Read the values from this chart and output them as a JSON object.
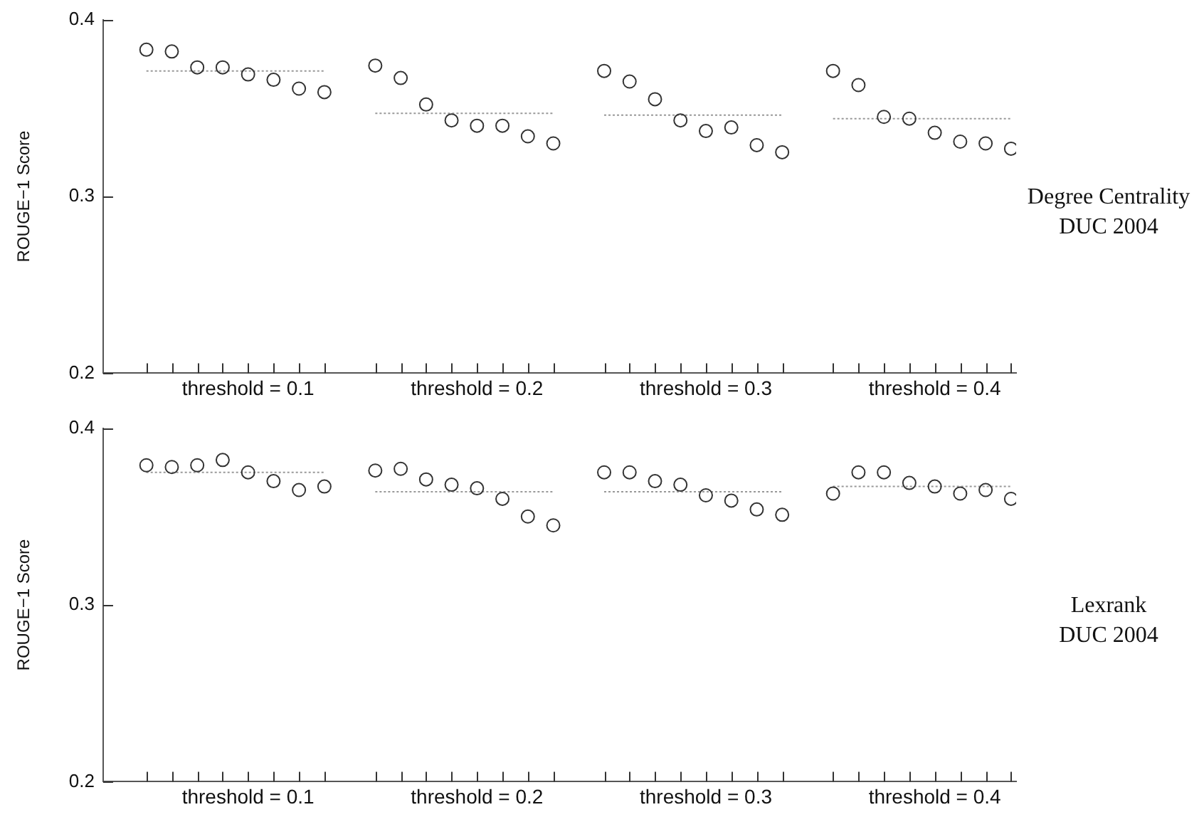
{
  "chart_data": [
    {
      "type": "scatter",
      "ylabel": "ROUGE−1 Score",
      "annotations": [
        "Degree Centrality",
        "DUC 2004"
      ],
      "categories": [
        null,
        null,
        null,
        null,
        "threshold = 0.1",
        null,
        null,
        null,
        null,
        null,
        null,
        null,
        null,
        "threshold = 0.2",
        null,
        null,
        null,
        null,
        null,
        null,
        null,
        null,
        "threshold = 0.3",
        null,
        null,
        null,
        null,
        null,
        null,
        null,
        null,
        "threshold = 0.4",
        null,
        null,
        null
      ],
      "ylim": [
        0.2,
        0.4
      ],
      "yticks": [
        0.2,
        0.3,
        0.4
      ],
      "grid": false,
      "marker": "circle",
      "series": [
        {
          "type": "scatter",
          "color": "#333333",
          "values": [
            0.383,
            0.382,
            0.373,
            0.373,
            0.369,
            0.366,
            0.361,
            0.359,
            null,
            0.374,
            0.367,
            0.352,
            0.343,
            0.34,
            0.34,
            0.334,
            0.33,
            null,
            0.371,
            0.365,
            0.355,
            0.343,
            0.337,
            0.339,
            0.329,
            0.325,
            null,
            0.371,
            0.363,
            0.345,
            0.344,
            0.336,
            0.331,
            0.33,
            0.327
          ]
        },
        {
          "type": "line",
          "color": "#999999",
          "marker": "none",
          "line_style": "dotted",
          "values": [
            0.371,
            0.371,
            0.371,
            0.371,
            0.371,
            0.371,
            0.371,
            0.371,
            null,
            0.347,
            0.347,
            0.347,
            0.347,
            0.347,
            0.347,
            0.347,
            0.347,
            null,
            0.346,
            0.346,
            0.346,
            0.346,
            0.346,
            0.346,
            0.346,
            0.346,
            null,
            0.344,
            0.344,
            0.344,
            0.344,
            0.344,
            0.344,
            0.344,
            0.344
          ]
        }
      ]
    },
    {
      "type": "scatter",
      "ylabel": "ROUGE−1 Score",
      "annotations": [
        "Lexrank",
        "DUC 2004"
      ],
      "categories": [
        null,
        null,
        null,
        null,
        "threshold = 0.1",
        null,
        null,
        null,
        null,
        null,
        null,
        null,
        null,
        "threshold = 0.2",
        null,
        null,
        null,
        null,
        null,
        null,
        null,
        null,
        "threshold = 0.3",
        null,
        null,
        null,
        null,
        null,
        null,
        null,
        null,
        "threshold = 0.4",
        null,
        null,
        null
      ],
      "ylim": [
        0.2,
        0.4
      ],
      "yticks": [
        0.2,
        0.3,
        0.4
      ],
      "grid": false,
      "marker": "circle",
      "series": [
        {
          "type": "scatter",
          "color": "#333333",
          "values": [
            0.379,
            0.378,
            0.379,
            0.382,
            0.375,
            0.37,
            0.365,
            0.367,
            null,
            0.376,
            0.377,
            0.371,
            0.368,
            0.366,
            0.36,
            0.35,
            0.345,
            null,
            0.375,
            0.375,
            0.37,
            0.368,
            0.362,
            0.359,
            0.354,
            0.351,
            null,
            0.363,
            0.375,
            0.375,
            0.369,
            0.367,
            0.363,
            0.365,
            0.36
          ]
        },
        {
          "type": "line",
          "color": "#999999",
          "marker": "none",
          "line_style": "dotted",
          "values": [
            0.375,
            0.375,
            0.375,
            0.375,
            0.375,
            0.375,
            0.375,
            0.375,
            null,
            0.364,
            0.364,
            0.364,
            0.364,
            0.364,
            0.364,
            0.364,
            0.364,
            null,
            0.364,
            0.364,
            0.364,
            0.364,
            0.364,
            0.364,
            0.364,
            0.364,
            null,
            0.367,
            0.367,
            0.367,
            0.367,
            0.367,
            0.367,
            0.367,
            0.367
          ]
        }
      ]
    }
  ]
}
